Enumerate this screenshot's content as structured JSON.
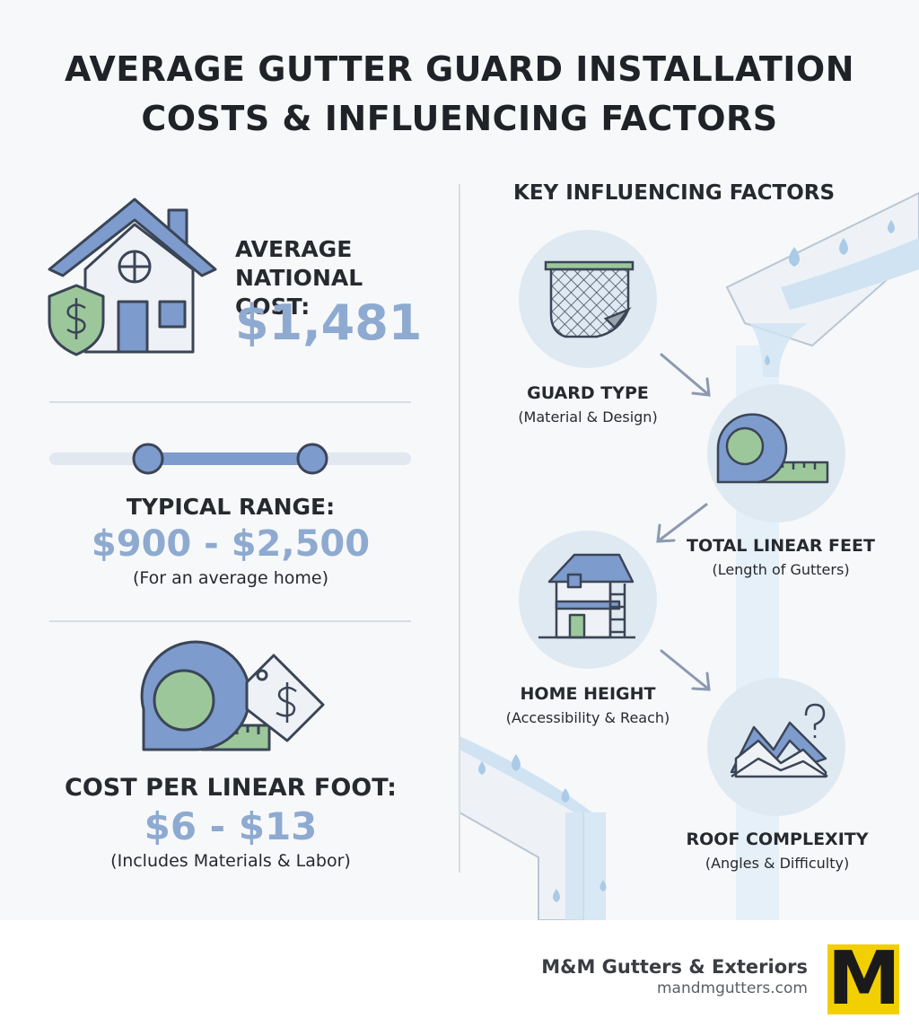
{
  "title_lines": [
    "AVERAGE GUTTER GUARD INSTALLATION",
    "COSTS & INFLUENCING FACTORS"
  ],
  "average": {
    "label": "AVERAGE NATIONAL COST:",
    "value": "$1,481"
  },
  "range": {
    "label": "TYPICAL RANGE:",
    "value": "$900 - $2,500",
    "note": "(For an average home)"
  },
  "per_foot": {
    "label": "COST PER LINEAR FOOT:",
    "value": "$6 - $13",
    "note": "(Includes Materials & Labor)"
  },
  "factors": {
    "heading": "KEY INFLUENCING FACTORS",
    "items": [
      {
        "label": "GUARD TYPE",
        "note": "(Material & Design)"
      },
      {
        "label": "TOTAL LINEAR FEET",
        "note": "(Length of Gutters)"
      },
      {
        "label": "HOME HEIGHT",
        "note": "(Accessibility & Reach)"
      },
      {
        "label": "ROOF COMPLEXITY",
        "note": "(Angles & Difficulty)"
      }
    ]
  },
  "footer": {
    "company": "M&M Gutters & Exteriors",
    "url": "mandmgutters.com",
    "logo": "M"
  }
}
